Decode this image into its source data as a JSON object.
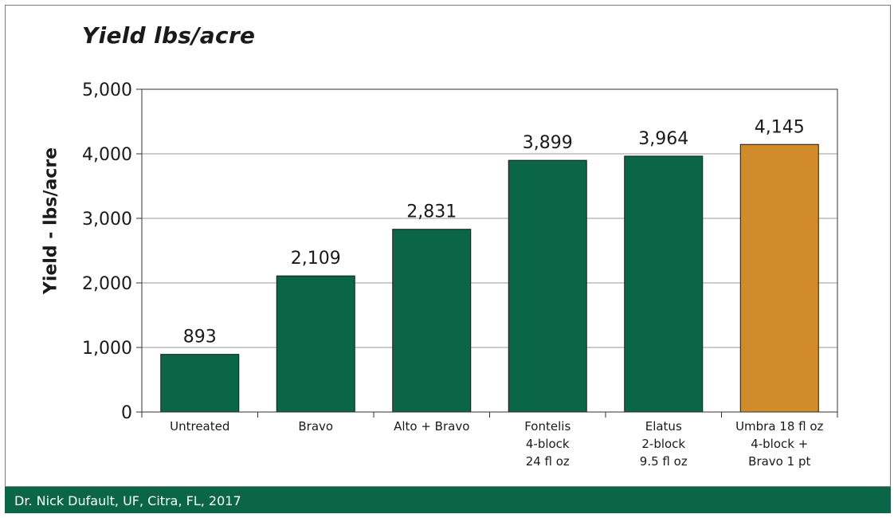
{
  "chart_data": {
    "type": "bar",
    "title": "Yield lbs/acre",
    "ylabel": "Yield - lbs/acre",
    "xlabel": "",
    "ylim": [
      0,
      5000
    ],
    "yticks": [
      {
        "value": 0,
        "label": "0"
      },
      {
        "value": 1000,
        "label": "1,000"
      },
      {
        "value": 2000,
        "label": "2,000"
      },
      {
        "value": 3000,
        "label": "3,000"
      },
      {
        "value": 4000,
        "label": "4,000"
      },
      {
        "value": 5000,
        "label": "5,000"
      }
    ],
    "grid": true,
    "categories": [
      [
        "Untreated"
      ],
      [
        "Bravo"
      ],
      [
        "Alto + Bravo"
      ],
      [
        "Fontelis",
        "4-block",
        "24 fl oz"
      ],
      [
        "Elatus",
        "2-block",
        "9.5 fl oz"
      ],
      [
        "Umbra 18 fl oz",
        "4-block +",
        "Bravo 1 pt"
      ]
    ],
    "values": [
      893,
      2109,
      2831,
      3899,
      3964,
      4145
    ],
    "value_labels": [
      "893",
      "2,109",
      "2,831",
      "3,899",
      "3,964",
      "4,145"
    ],
    "colors": [
      "#0a6647",
      "#0a6647",
      "#0a6647",
      "#0a6647",
      "#0a6647",
      "#d18b2b"
    ]
  },
  "footer": {
    "text": "Dr. Nick Dufault, UF, Citra, FL, 2017"
  }
}
